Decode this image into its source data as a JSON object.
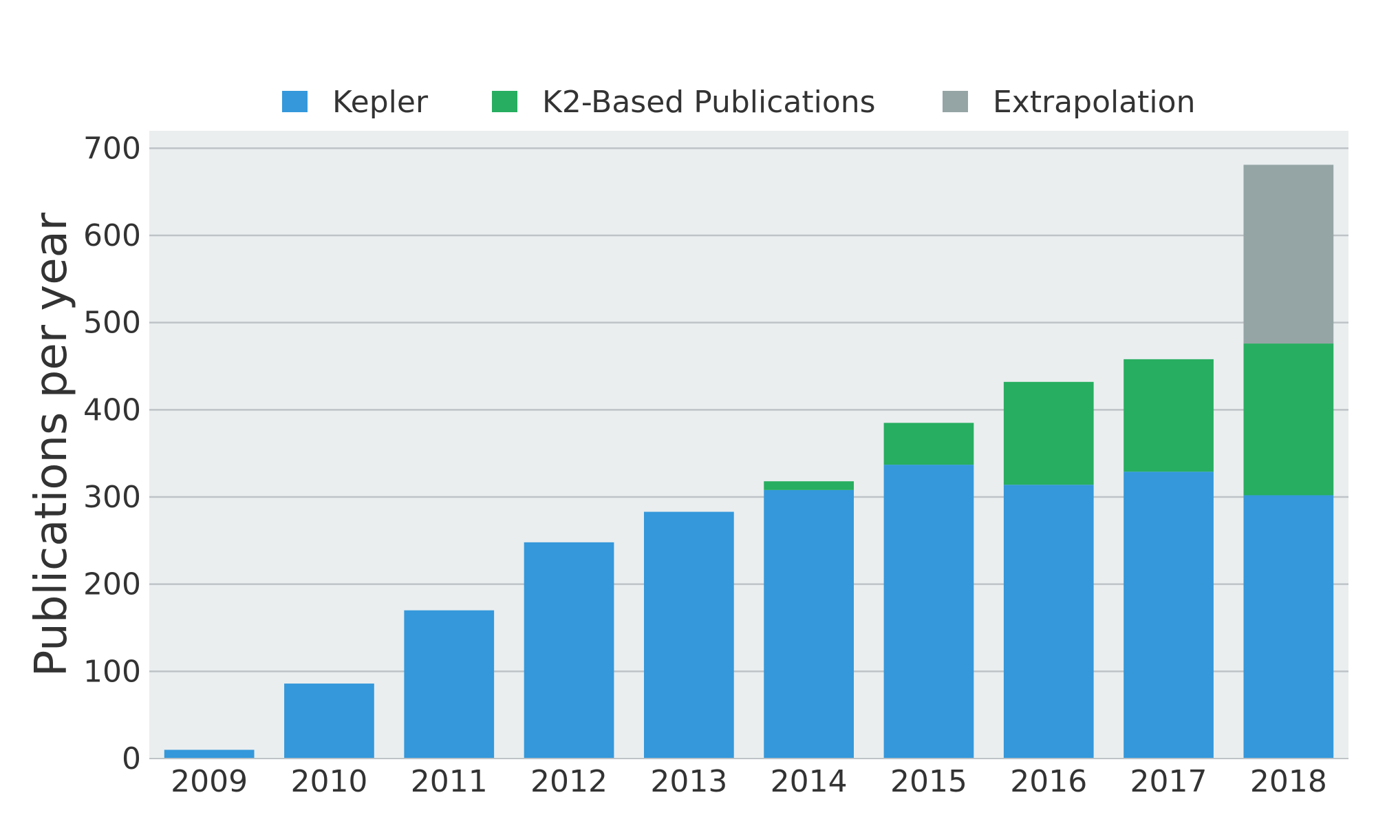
{
  "chart_data": {
    "type": "bar",
    "stacked": true,
    "categories": [
      "2009",
      "2010",
      "2011",
      "2012",
      "2013",
      "2014",
      "2015",
      "2016",
      "2017",
      "2018"
    ],
    "series": [
      {
        "name": "Kepler",
        "color": "#3498db",
        "values": [
          10,
          86,
          170,
          248,
          283,
          308,
          337,
          314,
          329,
          302
        ]
      },
      {
        "name": "K2-Based Publications",
        "color": "#27ae60",
        "values": [
          0,
          0,
          0,
          0,
          0,
          10,
          48,
          118,
          129,
          174
        ]
      },
      {
        "name": "Extrapolation",
        "color": "#95a5a6",
        "values": [
          0,
          0,
          0,
          0,
          0,
          0,
          0,
          0,
          0,
          205
        ]
      }
    ],
    "xlabel": "",
    "ylabel": "Publications per year",
    "ylim": [
      0,
      720
    ],
    "yticks": [
      0,
      100,
      200,
      300,
      400,
      500,
      600,
      700
    ],
    "grid": true,
    "legend_position": "top",
    "plot_background": "#eaeeef",
    "grid_color": "#bdc3c7"
  }
}
